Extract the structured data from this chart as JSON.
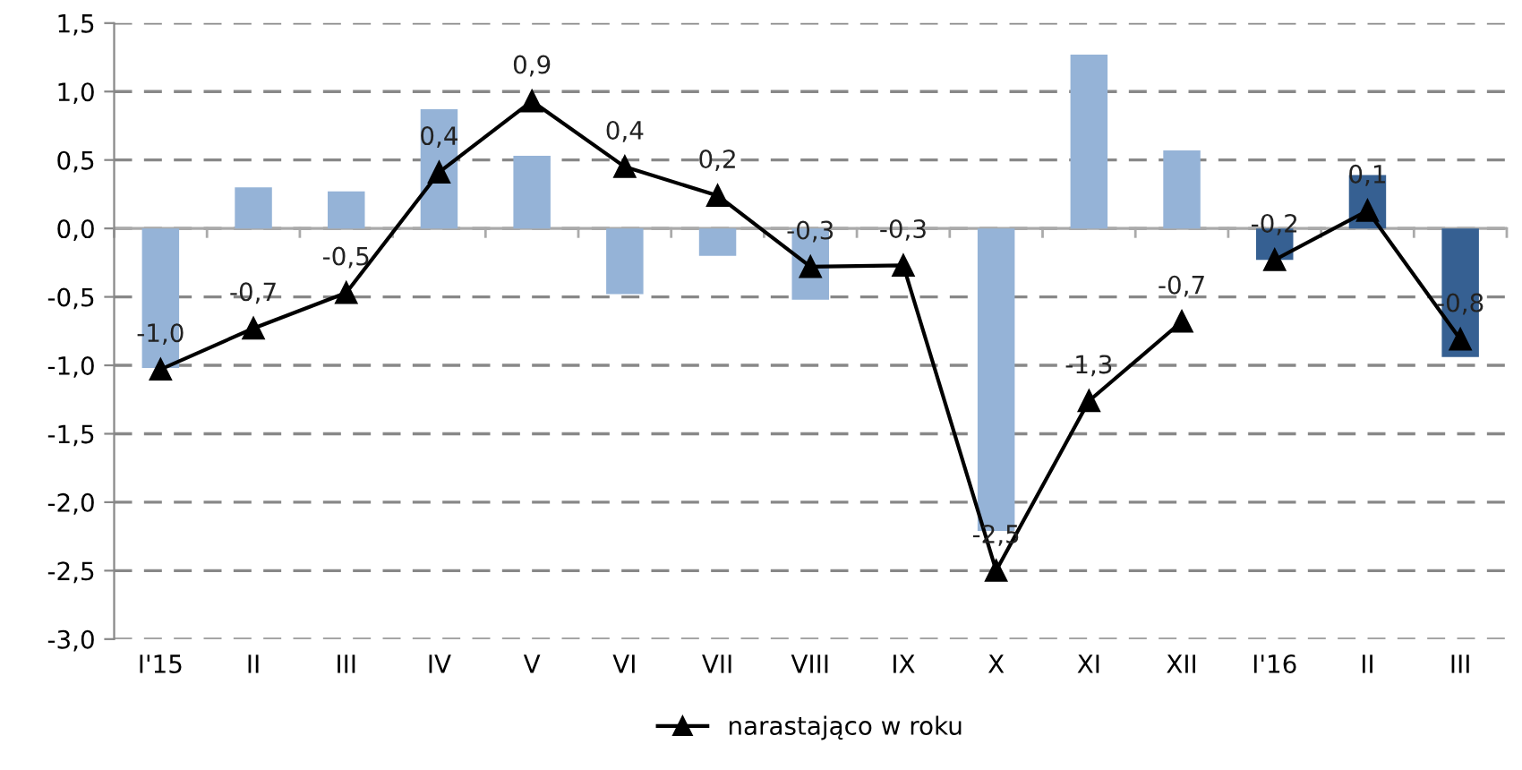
{
  "chart_data": {
    "type": "bar",
    "categories": [
      "I'15",
      "II",
      "III",
      "IV",
      "V",
      "VI",
      "VII",
      "VIII",
      "IX",
      "X",
      "XI",
      "XII",
      "I'16",
      "II",
      "III"
    ],
    "series": [
      {
        "colors": [
          "#95b3d7",
          "#95b3d7",
          "#95b3d7",
          "#95b3d7",
          "#95b3d7",
          "#95b3d7",
          "#95b3d7",
          "#95b3d7",
          "#95b3d7",
          "#95b3d7",
          "#95b3d7",
          "#95b3d7",
          "#366092",
          "#366092",
          "#366092"
        ],
        "values": [
          -1.02,
          0.3,
          0.27,
          0.87,
          0.53,
          -0.48,
          -0.2,
          -0.52,
          0,
          -2.21,
          1.27,
          0.57,
          -0.23,
          0.39,
          -0.94
        ]
      },
      {
        "type": "line",
        "name": "narastająco w roku",
        "color": "#000000",
        "marker": "triangle",
        "values": [
          -1.03,
          -0.73,
          -0.47,
          0.41,
          0.93,
          0.45,
          0.24,
          -0.28,
          -0.27,
          -2.5,
          -1.26,
          -0.68,
          null,
          null,
          null
        ],
        "value_labels": [
          "-1,0",
          "-0,7",
          "-0,5",
          "0,4",
          "0,9",
          "0,4",
          "0,2",
          "-0,3",
          "-0,3",
          "-2,5",
          "-1,3",
          "-0,7",
          null,
          null,
          null
        ]
      },
      {
        "type": "line",
        "color": "#000000",
        "marker": "triangle",
        "values": [
          null,
          null,
          null,
          null,
          null,
          null,
          null,
          null,
          null,
          null,
          null,
          null,
          -0.23,
          0.13,
          -0.81
        ],
        "value_labels": [
          null,
          null,
          null,
          null,
          null,
          null,
          null,
          null,
          null,
          null,
          null,
          null,
          "-0,2",
          "0,1",
          "-0,8"
        ]
      }
    ],
    "ylim": [
      -3.0,
      1.5
    ],
    "yticks": [
      {
        "value": -3.0,
        "label": "-3,0"
      },
      {
        "value": -2.5,
        "label": "-2,5"
      },
      {
        "value": -2.0,
        "label": "-2,0"
      },
      {
        "value": -1.5,
        "label": "-1,5"
      },
      {
        "value": -1.0,
        "label": "-1,0"
      },
      {
        "value": -0.5,
        "label": "-0,5"
      },
      {
        "value": 0.0,
        "label": "0,0"
      },
      {
        "value": 0.5,
        "label": "0,5"
      },
      {
        "value": 1.0,
        "label": "1,0"
      },
      {
        "value": 1.5,
        "label": "1,5"
      }
    ],
    "grid": "y",
    "legend": "bottom"
  }
}
